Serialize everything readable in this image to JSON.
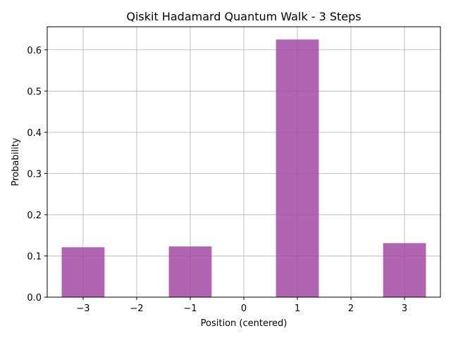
{
  "chart_data": {
    "type": "bar",
    "title": "Qiskit Hadamard Quantum Walk - 3 Steps",
    "xlabel": "Position (centered)",
    "ylabel": "Probability",
    "x": [
      -3,
      -1,
      1,
      3
    ],
    "values": [
      0.121,
      0.123,
      0.625,
      0.131
    ],
    "xticks": [
      -3,
      -2,
      -1,
      0,
      1,
      2,
      3
    ],
    "xtick_labels": [
      "−3",
      "−2",
      "−1",
      "0",
      "1",
      "2",
      "3"
    ],
    "yticks": [
      0.0,
      0.1,
      0.2,
      0.3,
      0.4,
      0.5,
      0.6
    ],
    "ytick_labels": [
      "0.0",
      "0.1",
      "0.2",
      "0.3",
      "0.4",
      "0.5",
      "0.6"
    ],
    "xlim": [
      -3.67,
      3.67
    ],
    "ylim": [
      0,
      0.656
    ],
    "bar_width": 0.8,
    "bar_color": "#a349a4",
    "grid": true,
    "grid_color": "#b0b0b0"
  }
}
